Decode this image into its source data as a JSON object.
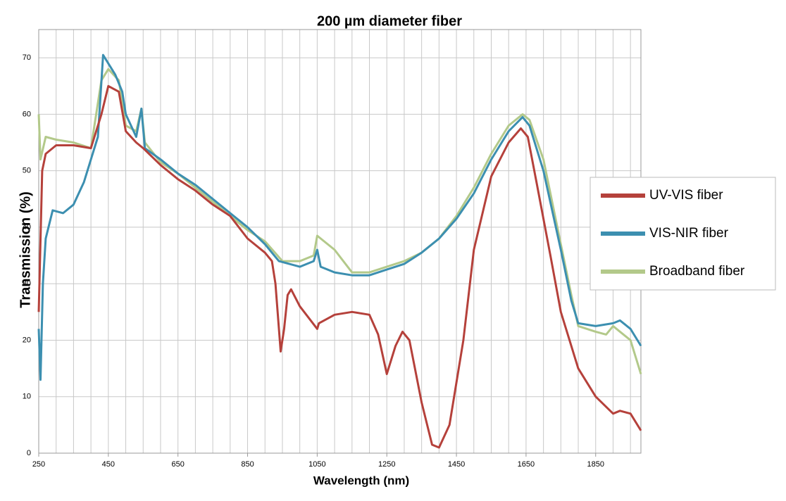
{
  "chart_data": {
    "type": "line",
    "title": "200 µm diameter fiber",
    "x_label": "Wavelength (nm)",
    "y_label": "Transmission (%)",
    "xlim": [
      250,
      1980
    ],
    "ylim": [
      0,
      75
    ],
    "xticks": [
      250,
      450,
      650,
      850,
      1050,
      1250,
      1450,
      1650,
      1850
    ],
    "xminorticks": [
      250,
      300,
      350,
      400,
      450,
      500,
      550,
      600,
      650,
      700,
      750,
      800,
      850,
      900,
      950,
      1000,
      1050,
      1100,
      1150,
      1200,
      1250,
      1300,
      1350,
      1400,
      1450,
      1500,
      1550,
      1600,
      1650,
      1700,
      1750,
      1800,
      1850,
      1900,
      1950
    ],
    "yticks": [
      0,
      10,
      20,
      30,
      40,
      50,
      60,
      70
    ],
    "grid": true,
    "legend": "right",
    "series": [
      {
        "name": "UV-VIS fiber",
        "color": "#b5413b",
        "x": [
          250,
          260,
          270,
          300,
          350,
          400,
          430,
          450,
          480,
          500,
          530,
          550,
          600,
          650,
          700,
          750,
          800,
          850,
          900,
          920,
          930,
          945,
          955,
          965,
          975,
          1000,
          1050,
          1055,
          1100,
          1150,
          1200,
          1225,
          1250,
          1275,
          1295,
          1315,
          1350,
          1380,
          1400,
          1430,
          1470,
          1500,
          1550,
          1600,
          1635,
          1655,
          1680,
          1720,
          1750,
          1800,
          1850,
          1900,
          1920,
          1950,
          1980
        ],
        "values": [
          25,
          50,
          53,
          54.5,
          54.5,
          54,
          60,
          65,
          64,
          57,
          55,
          54,
          51,
          48.5,
          46.5,
          44,
          42,
          38,
          35.5,
          34,
          30,
          18,
          22,
          28,
          29,
          26,
          22,
          23,
          24.5,
          25,
          24.5,
          21,
          14,
          19,
          21.5,
          20,
          9,
          1.5,
          1,
          5,
          20,
          36,
          49,
          55,
          57.5,
          56,
          48,
          35,
          25,
          15,
          10,
          7,
          7.5,
          7,
          4
        ]
      },
      {
        "name": "VIS-NIR fiber",
        "color": "#3c8fb0",
        "x": [
          250,
          255,
          262,
          270,
          290,
          320,
          350,
          380,
          400,
          420,
          435,
          450,
          470,
          490,
          500,
          530,
          545,
          555,
          600,
          650,
          700,
          750,
          800,
          850,
          900,
          940,
          1000,
          1040,
          1050,
          1060,
          1100,
          1150,
          1200,
          1250,
          1300,
          1350,
          1400,
          1450,
          1500,
          1550,
          1600,
          1640,
          1660,
          1700,
          1750,
          1780,
          1800,
          1850,
          1900,
          1920,
          1950,
          1980
        ],
        "values": [
          22,
          13,
          30,
          38,
          43,
          42.5,
          44,
          48,
          52,
          56,
          70.5,
          69,
          67,
          64,
          60,
          56,
          61,
          54,
          52,
          49.5,
          47.5,
          45,
          42.5,
          40,
          37,
          34,
          33,
          34,
          36,
          33,
          32,
          31.5,
          31.5,
          32.5,
          33.5,
          35.5,
          38,
          41.5,
          46,
          52,
          57,
          59.5,
          58,
          50,
          36,
          27,
          23,
          22.5,
          23,
          23.5,
          22,
          19
        ]
      },
      {
        "name": "Broadband fiber",
        "color": "#b3c98a",
        "x": [
          250,
          255,
          270,
          300,
          350,
          400,
          430,
          450,
          480,
          500,
          530,
          545,
          555,
          600,
          650,
          700,
          750,
          800,
          850,
          900,
          950,
          1000,
          1040,
          1050,
          1100,
          1150,
          1200,
          1250,
          1300,
          1350,
          1400,
          1450,
          1500,
          1550,
          1600,
          1640,
          1660,
          1700,
          1750,
          1780,
          1800,
          1850,
          1880,
          1900,
          1950,
          1980
        ],
        "values": [
          60,
          52,
          56,
          55.5,
          55,
          54,
          66,
          68,
          66,
          58,
          57,
          61,
          55,
          51.5,
          49.5,
          47,
          44.5,
          42,
          39.5,
          37.5,
          34,
          34,
          35,
          38.5,
          36,
          32,
          32,
          33,
          34,
          35.5,
          38,
          42,
          47,
          53,
          58,
          60,
          59,
          52,
          37,
          28,
          22.5,
          21.5,
          21,
          22.5,
          20,
          14
        ]
      }
    ]
  }
}
